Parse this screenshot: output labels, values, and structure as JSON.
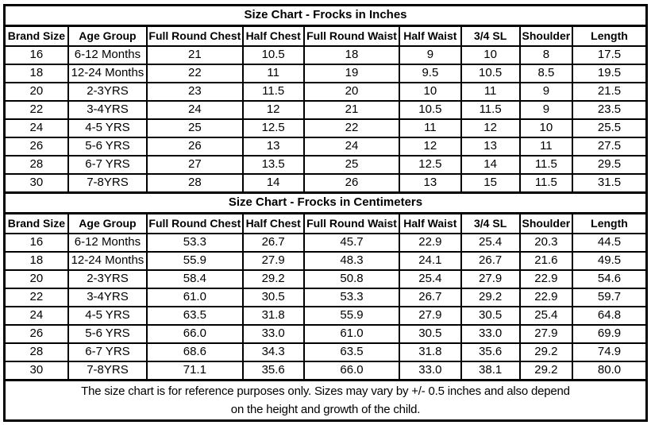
{
  "colors": {
    "border": "#000000",
    "background": "#ffffff",
    "text": "#000000"
  },
  "chart_data": [
    {
      "type": "table",
      "title": "Size Chart - Frocks in Inches",
      "columns": [
        "Brand Size",
        "Age Group",
        "Full Round Chest",
        "Half Chest",
        "Full Round Waist",
        "Half Waist",
        "3/4 SL",
        "Shoulder",
        "Length"
      ],
      "rows": [
        [
          "16",
          "6-12 Months",
          "21",
          "10.5",
          "18",
          "9",
          "10",
          "8",
          "17.5"
        ],
        [
          "18",
          "12-24 Months",
          "22",
          "11",
          "19",
          "9.5",
          "10.5",
          "8.5",
          "19.5"
        ],
        [
          "20",
          "2-3YRS",
          "23",
          "11.5",
          "20",
          "10",
          "11",
          "9",
          "21.5"
        ],
        [
          "22",
          "3-4YRS",
          "24",
          "12",
          "21",
          "10.5",
          "11.5",
          "9",
          "23.5"
        ],
        [
          "24",
          "4-5 YRS",
          "25",
          "12.5",
          "22",
          "11",
          "12",
          "10",
          "25.5"
        ],
        [
          "26",
          "5-6 YRS",
          "26",
          "13",
          "24",
          "12",
          "13",
          "11",
          "27.5"
        ],
        [
          "28",
          "6-7 YRS",
          "27",
          "13.5",
          "25",
          "12.5",
          "14",
          "11.5",
          "29.5"
        ],
        [
          "30",
          "7-8YRS",
          "28",
          "14",
          "26",
          "13",
          "15",
          "11.5",
          "31.5"
        ]
      ]
    },
    {
      "type": "table",
      "title": "Size Chart - Frocks in Centimeters",
      "columns": [
        "Brand Size",
        "Age Group",
        "Full Round Chest",
        "Half Chest",
        "Full Round Waist",
        "Half Waist",
        "3/4 SL",
        "Shoulder",
        "Length"
      ],
      "rows": [
        [
          "16",
          "6-12 Months",
          "53.3",
          "26.7",
          "45.7",
          "22.9",
          "25.4",
          "20.3",
          "44.5"
        ],
        [
          "18",
          "12-24 Months",
          "55.9",
          "27.9",
          "48.3",
          "24.1",
          "26.7",
          "21.6",
          "49.5"
        ],
        [
          "20",
          "2-3YRS",
          "58.4",
          "29.2",
          "50.8",
          "25.4",
          "27.9",
          "22.9",
          "54.6"
        ],
        [
          "22",
          "3-4YRS",
          "61.0",
          "30.5",
          "53.3",
          "26.7",
          "29.2",
          "22.9",
          "59.7"
        ],
        [
          "24",
          "4-5 YRS",
          "63.5",
          "31.8",
          "55.9",
          "27.9",
          "30.5",
          "25.4",
          "64.8"
        ],
        [
          "26",
          "5-6 YRS",
          "66.0",
          "33.0",
          "61.0",
          "30.5",
          "33.0",
          "27.9",
          "69.9"
        ],
        [
          "28",
          "6-7 YRS",
          "68.6",
          "34.3",
          "63.5",
          "31.8",
          "35.6",
          "29.2",
          "74.9"
        ],
        [
          "30",
          "7-8YRS",
          "71.1",
          "35.6",
          "66.0",
          "33.0",
          "38.1",
          "29.2",
          "80.0"
        ]
      ]
    }
  ],
  "footer": {
    "line1": "The size chart is for reference purposes only. Sizes may vary by +/- 0.5 inches and also depend",
    "line2": "on the height and growth of the child."
  }
}
